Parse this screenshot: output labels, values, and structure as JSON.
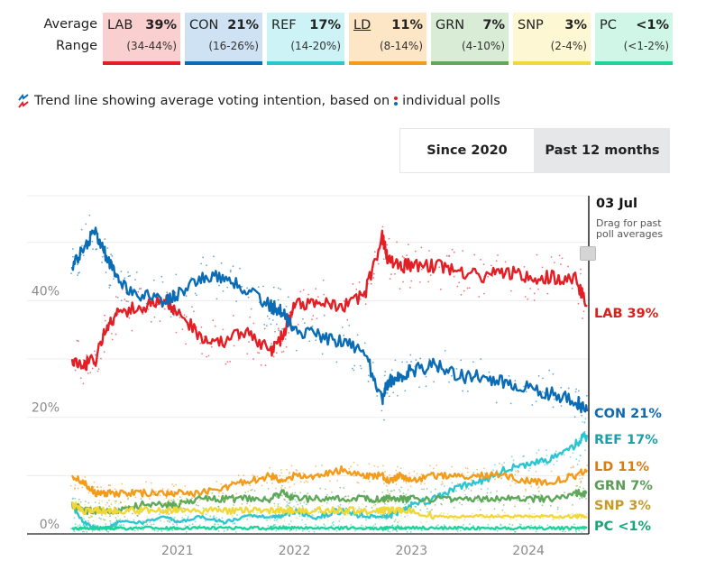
{
  "legend": {
    "row_labels": {
      "average": "Average",
      "range": "Range"
    },
    "parties": [
      {
        "abbr": "LAB",
        "average": "39%",
        "range": "(34-44%)",
        "color": "#e31e24",
        "bg": "#f9cfcf",
        "label_color": "#d8211b",
        "underline": false
      },
      {
        "abbr": "CON",
        "average": "21%",
        "range": "(16-26%)",
        "color": "#0a6cb4",
        "bg": "#cfe2f3",
        "label_color": "#0f68b2",
        "underline": false
      },
      {
        "abbr": "REF",
        "average": "17%",
        "range": "(14-20%)",
        "color": "#2cc6d3",
        "bg": "#cef3f6",
        "label_color": "#1a9fab",
        "underline": false
      },
      {
        "abbr": "LD",
        "average": "11%",
        "range": "(8-14%)",
        "color": "#f49b1a",
        "bg": "#fde6c6",
        "label_color": "#d67e15",
        "underline": true
      },
      {
        "abbr": "GRN",
        "average": "7%",
        "range": "(4-10%)",
        "color": "#5ea85a",
        "bg": "#d9edd6",
        "label_color": "#5a9c56",
        "underline": false
      },
      {
        "abbr": "SNP",
        "average": "3%",
        "range": "(2-4%)",
        "color": "#f2d836",
        "bg": "#fdf8d3",
        "label_color": "#c79a2a",
        "underline": false
      },
      {
        "abbr": "PC",
        "average": "<1%",
        "range": "(<1-2%)",
        "color": "#1ed39a",
        "bg": "#cff6e7",
        "label_color": "#17a479",
        "underline": false
      }
    ]
  },
  "caption": {
    "part1": "Trend line showing average voting intention, based on",
    "part2": "individual polls"
  },
  "toggle": {
    "since_2020": "Since 2020",
    "past_12_months": "Past 12 months"
  },
  "cursor": {
    "date": "03 Jul",
    "hint": "Drag for past poll averages"
  },
  "chart_data": {
    "type": "line",
    "title": "",
    "xlabel": "",
    "ylabel": "",
    "x_ticks": [
      "2021",
      "2022",
      "2023",
      "2024"
    ],
    "x_range": [
      2020.0,
      2024.54
    ],
    "y_ticks": [
      "0%",
      "20%",
      "40%"
    ],
    "ylim": [
      0,
      58
    ],
    "grid": true,
    "x": [
      2020.1,
      2020.2,
      2020.3,
      2020.4,
      2020.5,
      2020.7,
      2020.9,
      2021.0,
      2021.2,
      2021.4,
      2021.6,
      2021.8,
      2021.9,
      2022.0,
      2022.2,
      2022.4,
      2022.6,
      2022.75,
      2022.8,
      2022.9,
      2023.0,
      2023.2,
      2023.4,
      2023.6,
      2023.8,
      2024.0,
      2024.2,
      2024.4,
      2024.5
    ],
    "series": [
      {
        "name": "LAB",
        "values": [
          30,
          29,
          30,
          36,
          38,
          39,
          40,
          38,
          34,
          33,
          35,
          31,
          34,
          39,
          40,
          39,
          41,
          51,
          47,
          46,
          46,
          46,
          45,
          44,
          45,
          44,
          44,
          44,
          39
        ]
      },
      {
        "name": "CON",
        "values": [
          46,
          49,
          52,
          47,
          43,
          41,
          40,
          41,
          44,
          44,
          42,
          39,
          38,
          35,
          34,
          33,
          31,
          23,
          26,
          27,
          28,
          29,
          27,
          27,
          26,
          25,
          24,
          23,
          21
        ]
      },
      {
        "name": "REF",
        "values": [
          5,
          2,
          1,
          1,
          2,
          2,
          3,
          2,
          3,
          2,
          3,
          3,
          3,
          4,
          3,
          4,
          3,
          3,
          3,
          4,
          5,
          6,
          8,
          9,
          11,
          12,
          13,
          15,
          17
        ]
      },
      {
        "name": "LD",
        "values": [
          10,
          9,
          7,
          7,
          7,
          7,
          7,
          7,
          7,
          8,
          9,
          10,
          9,
          10,
          10,
          11,
          10,
          10,
          9,
          10,
          9,
          10,
          10,
          10,
          10,
          9,
          9,
          10,
          11
        ]
      },
      {
        "name": "GRN",
        "values": [
          5,
          4,
          4,
          4,
          4,
          5,
          5,
          5,
          6,
          6,
          6,
          6,
          7,
          6,
          6,
          6,
          6,
          6,
          6,
          6,
          6,
          6,
          6,
          6,
          6,
          6,
          6,
          7,
          7
        ]
      },
      {
        "name": "SNP",
        "values": [
          5,
          4,
          4,
          4,
          4,
          4,
          4,
          4,
          4,
          4,
          4,
          4,
          4,
          4,
          4,
          4,
          4,
          4,
          4,
          4,
          4,
          3,
          3,
          3,
          3,
          3,
          3,
          3,
          3
        ]
      },
      {
        "name": "PC",
        "values": [
          1,
          1,
          1,
          1,
          1,
          1,
          1,
          1,
          1,
          1,
          1,
          1,
          1,
          1,
          1,
          1,
          1,
          1,
          1,
          1,
          1,
          1,
          1,
          1,
          1,
          1,
          1,
          1,
          1
        ]
      }
    ],
    "end_labels": [
      "LAB 39%",
      "CON 21%",
      "REF 17%",
      "LD 11%",
      "GRN 7%",
      "SNP 3%",
      "PC <1%"
    ]
  }
}
